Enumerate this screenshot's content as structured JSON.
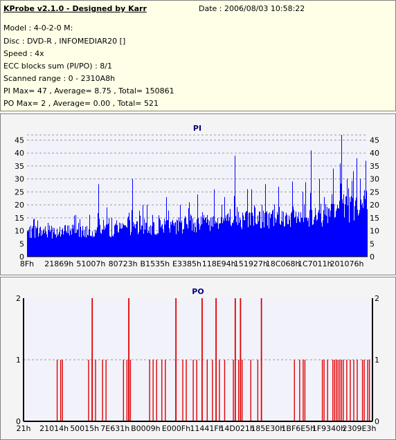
{
  "header": {
    "app_title": "KProbe v2.1.0 - Designed by Karr",
    "date": "Date : 2006/08/03 10:58:22",
    "lines": [
      "Model : 4-0-2-0 M:",
      "Disc : DVD-R , INFOMEDIAR20 []",
      "Speed : 4x",
      "ECC blocks sum (PI/PO) : 8/1",
      "Scanned range : 0 - 2310A8h",
      "PI Max= 47 , Average= 8.75 , Total= 150861",
      "PO Max= 2 , Average= 0.00 , Total= 521"
    ]
  },
  "chart_data": [
    {
      "type": "bar",
      "title": "PI",
      "color": "#0000ff",
      "ylim": [
        0,
        47
      ],
      "yticks": [
        0,
        5,
        10,
        15,
        20,
        25,
        30,
        35,
        40,
        45
      ],
      "xtick_labels": [
        "8Fh",
        "21869h",
        "51007h",
        "80723h",
        "B1535h",
        "E3385h",
        "118E94h",
        "151927h",
        "18C068h",
        "1C7011h",
        "201076h"
      ],
      "baseline_profile": [
        [
          0,
          9.5
        ],
        [
          0.3,
          10.5
        ],
        [
          0.45,
          12
        ],
        [
          0.6,
          14
        ],
        [
          0.75,
          15
        ],
        [
          0.88,
          16
        ],
        [
          1,
          20
        ]
      ],
      "peaks": [
        [
          0.01,
          12
        ],
        [
          0.03,
          14
        ],
        [
          0.08,
          11
        ],
        [
          0.11,
          12
        ],
        [
          0.15,
          13
        ],
        [
          0.21,
          28
        ],
        [
          0.235,
          19
        ],
        [
          0.3,
          17
        ],
        [
          0.31,
          30
        ],
        [
          0.34,
          20
        ],
        [
          0.41,
          23
        ],
        [
          0.45,
          20
        ],
        [
          0.5,
          24
        ],
        [
          0.55,
          26
        ],
        [
          0.58,
          23
        ],
        [
          0.61,
          39
        ],
        [
          0.66,
          26
        ],
        [
          0.7,
          28
        ],
        [
          0.74,
          27
        ],
        [
          0.78,
          29
        ],
        [
          0.81,
          25
        ],
        [
          0.835,
          41
        ],
        [
          0.86,
          30
        ],
        [
          0.9,
          34
        ],
        [
          0.92,
          36
        ],
        [
          0.925,
          47
        ],
        [
          0.94,
          30
        ],
        [
          0.96,
          33
        ],
        [
          0.97,
          38
        ],
        [
          0.98,
          30
        ],
        [
          0.995,
          37
        ]
      ]
    },
    {
      "type": "bar",
      "title": "PO",
      "color": "#e00000",
      "ylim": [
        0,
        2
      ],
      "yticks": [
        0,
        1,
        2
      ],
      "xtick_labels": [
        "21h",
        "21014h",
        "50015h",
        "7E631h",
        "B0009h",
        "E000Fh",
        "11441Fh",
        "14D021h",
        "185E30h",
        "1BF6E5h",
        "1F9340h",
        "2309E3h"
      ],
      "ones": [
        0.095,
        0.105,
        0.11,
        0.185,
        0.195,
        0.205,
        0.225,
        0.235,
        0.285,
        0.295,
        0.3,
        0.305,
        0.36,
        0.37,
        0.38,
        0.395,
        0.405,
        0.435,
        0.455,
        0.465,
        0.485,
        0.495,
        0.525,
        0.54,
        0.56,
        0.575,
        0.6,
        0.615,
        0.625,
        0.65,
        0.67,
        0.775,
        0.79,
        0.8,
        0.805,
        0.855,
        0.86,
        0.87,
        0.885,
        0.89,
        0.895,
        0.9,
        0.905,
        0.91,
        0.915,
        0.925,
        0.935,
        0.945,
        0.955,
        0.97,
        0.975,
        0.985,
        0.99
      ],
      "twos": [
        0.195,
        0.3,
        0.435,
        0.51,
        0.55,
        0.605,
        0.62,
        0.68
      ]
    }
  ]
}
